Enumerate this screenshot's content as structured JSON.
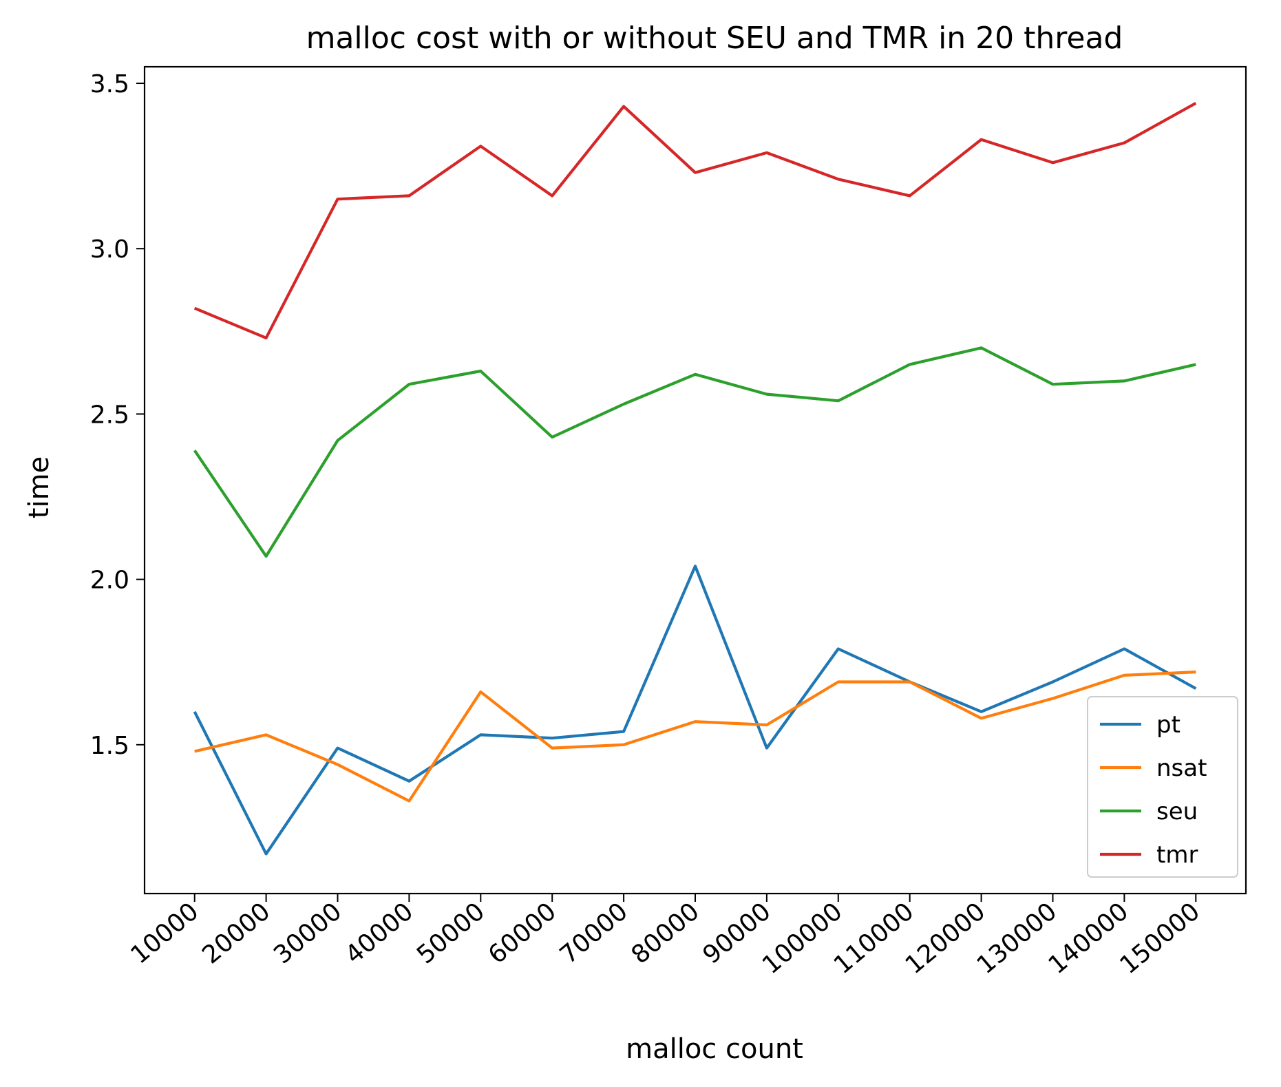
{
  "chart_data": {
    "type": "line",
    "title": "malloc cost with or without SEU and TMR in 20 thread",
    "xlabel": "malloc count",
    "ylabel": "time",
    "x": [
      10000,
      20000,
      30000,
      40000,
      50000,
      60000,
      70000,
      80000,
      90000,
      100000,
      110000,
      120000,
      130000,
      140000,
      150000
    ],
    "xticks": [
      "10000",
      "20000",
      "30000",
      "40000",
      "50000",
      "60000",
      "70000",
      "80000",
      "90000",
      "100000",
      "110000",
      "120000",
      "130000",
      "140000",
      "150000"
    ],
    "ylim": [
      1.05,
      3.55
    ],
    "yticks": [
      1.5,
      2.0,
      2.5,
      3.0,
      3.5
    ],
    "yticklabels": [
      "1.5",
      "2.0",
      "2.5",
      "3.0",
      "3.5"
    ],
    "grid": false,
    "legend_position": "lower-right",
    "series": [
      {
        "name": "pt",
        "color": "#1f77b4",
        "values": [
          1.6,
          1.17,
          1.49,
          1.39,
          1.53,
          1.52,
          1.54,
          2.04,
          1.49,
          1.79,
          1.69,
          1.6,
          1.69,
          1.79,
          1.67
        ]
      },
      {
        "name": "nsat",
        "color": "#ff7f0e",
        "values": [
          1.48,
          1.53,
          1.44,
          1.33,
          1.66,
          1.49,
          1.5,
          1.57,
          1.56,
          1.69,
          1.69,
          1.58,
          1.64,
          1.71,
          1.72
        ]
      },
      {
        "name": "seu",
        "color": "#2ca02c",
        "values": [
          2.39,
          2.07,
          2.42,
          2.59,
          2.63,
          2.43,
          2.53,
          2.62,
          2.56,
          2.54,
          2.65,
          2.7,
          2.59,
          2.6,
          2.65
        ]
      },
      {
        "name": "tmr",
        "color": "#d62728",
        "values": [
          2.82,
          2.73,
          3.15,
          3.16,
          3.31,
          3.16,
          3.43,
          3.23,
          3.29,
          3.21,
          3.16,
          3.33,
          3.26,
          3.32,
          3.44
        ]
      }
    ]
  }
}
